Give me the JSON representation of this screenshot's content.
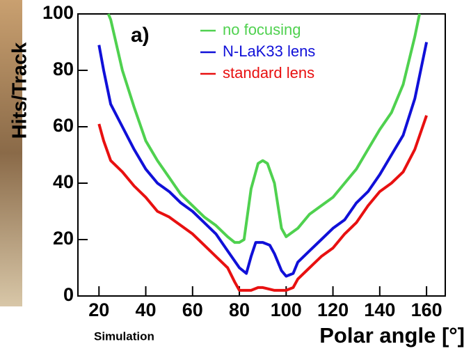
{
  "chart_data": {
    "type": "line",
    "panel_label": "a)",
    "xlabel": "Polar angle [°]",
    "ylabel": "Hits/Track",
    "note": "Simulation",
    "xlim": [
      11,
      168
    ],
    "ylim": [
      0,
      100
    ],
    "xticks": [
      20,
      40,
      60,
      80,
      100,
      120,
      140,
      160
    ],
    "yticks": [
      0,
      20,
      40,
      60,
      80,
      100
    ],
    "series": [
      {
        "name": "no focusing",
        "color": "#4fd14f",
        "x": [
          24,
          25,
          30,
          35,
          40,
          45,
          50,
          55,
          60,
          65,
          70,
          75,
          78,
          80,
          82,
          85,
          88,
          90,
          92,
          95,
          98,
          100,
          105,
          110,
          115,
          120,
          125,
          130,
          135,
          140,
          145,
          150,
          155,
          157
        ],
        "values": [
          100,
          98,
          80,
          67,
          55,
          48,
          42,
          36,
          32,
          28,
          25,
          21,
          19,
          19,
          20,
          38,
          47,
          48,
          47,
          40,
          24,
          21,
          24,
          29,
          32,
          35,
          40,
          45,
          52,
          59,
          65,
          75,
          92,
          100
        ]
      },
      {
        "name": "N-LaK33 lens",
        "color": "#1010d8",
        "x": [
          20,
          22,
          25,
          30,
          35,
          40,
          45,
          50,
          55,
          60,
          65,
          70,
          75,
          80,
          83,
          85,
          87,
          90,
          93,
          95,
          98,
          100,
          103,
          105,
          110,
          115,
          120,
          125,
          130,
          135,
          140,
          145,
          150,
          155,
          160
        ],
        "values": [
          89,
          80,
          68,
          60,
          52,
          45,
          40,
          37,
          33,
          30,
          26,
          22,
          16,
          10,
          8,
          14,
          19,
          19,
          18,
          15,
          9,
          7,
          8,
          12,
          16,
          20,
          24,
          27,
          33,
          37,
          43,
          50,
          57,
          70,
          90
        ]
      },
      {
        "name": "standard lens",
        "color": "#e81010",
        "x": [
          20,
          22,
          25,
          30,
          35,
          40,
          45,
          50,
          55,
          60,
          65,
          70,
          75,
          78,
          80,
          85,
          88,
          90,
          95,
          100,
          103,
          105,
          110,
          115,
          120,
          125,
          130,
          135,
          140,
          145,
          150,
          155,
          160
        ],
        "values": [
          61,
          55,
          48,
          44,
          39,
          35,
          30,
          28,
          25,
          22,
          18,
          14,
          10,
          5,
          2,
          2,
          3,
          3,
          2,
          2,
          3,
          6,
          10,
          14,
          17,
          22,
          26,
          32,
          37,
          40,
          44,
          52,
          64
        ]
      }
    ]
  }
}
